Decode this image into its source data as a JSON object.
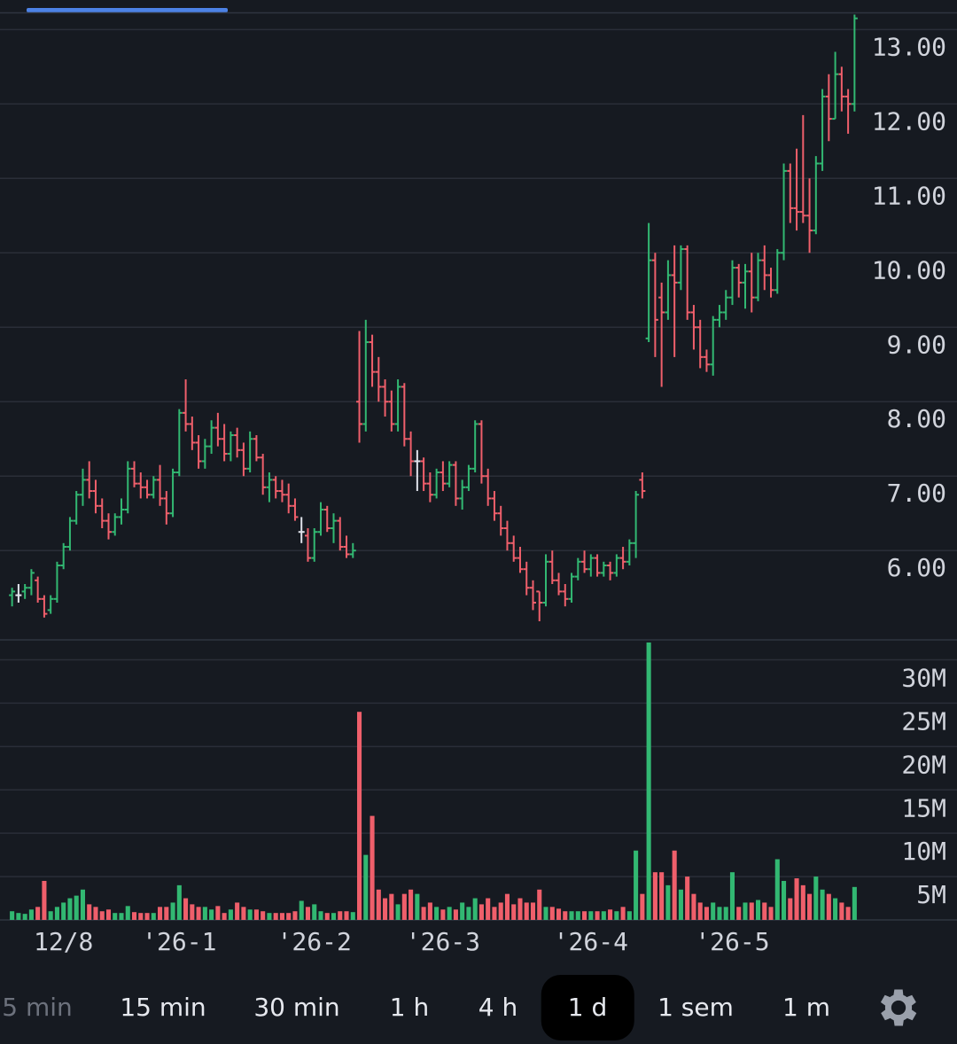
{
  "chart_data": {
    "type": "ohlc",
    "up_color": "#32b872",
    "down_color": "#ef5f6b",
    "doji_color": "#e0e3eb",
    "grid": true,
    "categories": [
      null,
      null,
      null,
      null,
      null,
      null,
      null,
      null,
      "12/8",
      null,
      null,
      null,
      null,
      null,
      null,
      null,
      null,
      null,
      null,
      null,
      null,
      null,
      null,
      null,
      null,
      null,
      "'26-1",
      null,
      null,
      null,
      null,
      null,
      null,
      null,
      null,
      null,
      null,
      null,
      null,
      null,
      null,
      null,
      null,
      null,
      null,
      null,
      null,
      "'26-2",
      null,
      null,
      null,
      null,
      null,
      null,
      null,
      null,
      null,
      null,
      null,
      null,
      null,
      null,
      null,
      null,
      null,
      null,
      null,
      "'26-3",
      null,
      null,
      null,
      null,
      null,
      null,
      null,
      null,
      null,
      null,
      null,
      null,
      null,
      null,
      null,
      null,
      null,
      null,
      null,
      null,
      null,
      null,
      "'26-4",
      null,
      null,
      null,
      null,
      null,
      null,
      null,
      null,
      null,
      null,
      null,
      null,
      null,
      null,
      null,
      null,
      null,
      null,
      null,
      null,
      null,
      "'26-5",
      null,
      null,
      null,
      null,
      null,
      null,
      null,
      null,
      null,
      null,
      null,
      null,
      null,
      null,
      null,
      null,
      null,
      null,
      null
    ],
    "ohlc": [
      [
        5.4,
        5.5,
        5.25,
        5.45
      ],
      [
        5.4,
        5.55,
        5.3,
        5.4
      ],
      [
        5.45,
        5.55,
        5.35,
        5.5
      ],
      [
        5.5,
        5.75,
        5.4,
        5.7
      ],
      [
        5.6,
        5.65,
        5.3,
        5.35
      ],
      [
        5.35,
        5.4,
        5.1,
        5.15
      ],
      [
        5.2,
        5.4,
        5.15,
        5.35
      ],
      [
        5.35,
        5.85,
        5.3,
        5.8
      ],
      [
        5.8,
        6.1,
        5.75,
        6.05
      ],
      [
        6.05,
        6.45,
        6.0,
        6.4
      ],
      [
        6.4,
        6.8,
        6.35,
        6.75
      ],
      [
        6.75,
        7.1,
        6.6,
        6.95
      ],
      [
        6.95,
        7.2,
        6.7,
        6.8
      ],
      [
        6.8,
        6.95,
        6.5,
        6.6
      ],
      [
        6.6,
        6.7,
        6.3,
        6.4
      ],
      [
        6.4,
        6.5,
        6.15,
        6.25
      ],
      [
        6.25,
        6.5,
        6.2,
        6.45
      ],
      [
        6.45,
        6.7,
        6.35,
        6.55
      ],
      [
        6.55,
        7.2,
        6.5,
        7.1
      ],
      [
        7.1,
        7.2,
        6.85,
        6.9
      ],
      [
        6.9,
        7.05,
        6.7,
        6.85
      ],
      [
        6.85,
        6.95,
        6.7,
        6.75
      ],
      [
        6.75,
        7.0,
        6.7,
        6.95
      ],
      [
        6.95,
        7.15,
        6.6,
        6.7
      ],
      [
        6.7,
        6.8,
        6.35,
        6.5
      ],
      [
        6.5,
        7.1,
        6.45,
        7.05
      ],
      [
        7.05,
        7.9,
        7.0,
        7.85
      ],
      [
        7.85,
        8.3,
        7.6,
        7.7
      ],
      [
        7.7,
        7.8,
        7.35,
        7.45
      ],
      [
        7.45,
        7.55,
        7.1,
        7.2
      ],
      [
        7.2,
        7.5,
        7.1,
        7.4
      ],
      [
        7.4,
        7.75,
        7.3,
        7.65
      ],
      [
        7.65,
        7.85,
        7.4,
        7.5
      ],
      [
        7.5,
        7.7,
        7.2,
        7.3
      ],
      [
        7.3,
        7.6,
        7.2,
        7.55
      ],
      [
        7.55,
        7.65,
        7.25,
        7.35
      ],
      [
        7.35,
        7.45,
        7.0,
        7.1
      ],
      [
        7.1,
        7.6,
        7.05,
        7.5
      ],
      [
        7.5,
        7.55,
        7.2,
        7.25
      ],
      [
        7.25,
        7.3,
        6.75,
        6.85
      ],
      [
        6.85,
        7.05,
        6.65,
        6.95
      ],
      [
        6.95,
        7.0,
        6.7,
        6.8
      ],
      [
        6.8,
        6.95,
        6.65,
        6.75
      ],
      [
        6.75,
        6.9,
        6.5,
        6.6
      ],
      [
        6.6,
        6.7,
        6.4,
        6.45
      ],
      [
        6.25,
        6.45,
        6.1,
        6.25
      ],
      [
        6.2,
        6.3,
        5.85,
        5.9
      ],
      [
        5.9,
        6.3,
        5.85,
        6.25
      ],
      [
        6.25,
        6.65,
        6.2,
        6.55
      ],
      [
        6.55,
        6.6,
        6.25,
        6.3
      ],
      [
        6.3,
        6.5,
        6.1,
        6.4
      ],
      [
        6.4,
        6.45,
        6.0,
        6.05
      ],
      [
        6.05,
        6.2,
        5.9,
        5.95
      ],
      [
        5.95,
        6.1,
        5.9,
        6.0
      ],
      [
        8.0,
        8.95,
        7.45,
        7.7
      ],
      [
        7.7,
        9.1,
        7.6,
        8.8
      ],
      [
        8.8,
        8.9,
        8.2,
        8.4
      ],
      [
        8.4,
        8.6,
        8.0,
        8.2
      ],
      [
        8.2,
        8.3,
        7.8,
        8.0
      ],
      [
        8.0,
        8.15,
        7.6,
        7.7
      ],
      [
        7.7,
        8.3,
        7.6,
        8.2
      ],
      [
        8.2,
        8.25,
        7.4,
        7.5
      ],
      [
        7.5,
        7.6,
        7.0,
        7.2
      ],
      [
        7.2,
        7.35,
        6.8,
        7.2
      ],
      [
        7.2,
        7.25,
        6.8,
        6.9
      ],
      [
        6.9,
        7.05,
        6.65,
        6.75
      ],
      [
        6.75,
        7.1,
        6.7,
        7.05
      ],
      [
        7.05,
        7.2,
        6.8,
        6.9
      ],
      [
        6.9,
        7.2,
        6.85,
        7.15
      ],
      [
        7.15,
        7.2,
        6.6,
        6.7
      ],
      [
        6.7,
        6.95,
        6.55,
        6.85
      ],
      [
        6.85,
        7.15,
        6.8,
        7.1
      ],
      [
        7.1,
        7.75,
        7.05,
        7.7
      ],
      [
        7.7,
        7.75,
        6.9,
        7.0
      ],
      [
        7.0,
        7.1,
        6.6,
        6.7
      ],
      [
        6.7,
        6.8,
        6.4,
        6.5
      ],
      [
        6.5,
        6.6,
        6.2,
        6.3
      ],
      [
        6.3,
        6.4,
        6.0,
        6.1
      ],
      [
        6.1,
        6.2,
        5.85,
        5.9
      ],
      [
        5.9,
        6.05,
        5.7,
        5.75
      ],
      [
        5.75,
        5.85,
        5.4,
        5.5
      ],
      [
        5.5,
        5.6,
        5.2,
        5.3
      ],
      [
        5.45,
        5.45,
        5.05,
        5.3
      ],
      [
        5.3,
        5.95,
        5.25,
        5.85
      ],
      [
        5.85,
        6.0,
        5.55,
        5.6
      ],
      [
        5.6,
        5.7,
        5.4,
        5.45
      ],
      [
        5.45,
        5.55,
        5.25,
        5.35
      ],
      [
        5.35,
        5.7,
        5.3,
        5.65
      ],
      [
        5.65,
        5.9,
        5.6,
        5.85
      ],
      [
        5.85,
        6.0,
        5.7,
        5.75
      ],
      [
        5.75,
        5.95,
        5.65,
        5.9
      ],
      [
        5.9,
        5.95,
        5.65,
        5.7
      ],
      [
        5.7,
        5.85,
        5.65,
        5.8
      ],
      [
        5.8,
        5.85,
        5.6,
        5.7
      ],
      [
        5.7,
        5.95,
        5.65,
        5.9
      ],
      [
        5.9,
        6.05,
        5.75,
        5.85
      ],
      [
        5.85,
        6.15,
        5.8,
        6.1
      ],
      [
        6.1,
        6.8,
        5.9,
        6.75
      ],
      [
        6.95,
        7.05,
        6.7,
        6.8
      ],
      [
        8.85,
        10.4,
        8.8,
        9.9
      ],
      [
        9.9,
        10.0,
        8.6,
        9.1
      ],
      [
        9.4,
        9.6,
        8.2,
        9.2
      ],
      [
        9.2,
        9.9,
        9.1,
        9.7
      ],
      [
        9.7,
        10.1,
        8.6,
        9.6
      ],
      [
        9.6,
        10.1,
        9.5,
        10.05
      ],
      [
        10.05,
        10.1,
        9.1,
        9.2
      ],
      [
        9.2,
        9.3,
        8.7,
        9.0
      ],
      [
        9.0,
        9.1,
        8.45,
        8.6
      ],
      [
        8.6,
        8.7,
        8.4,
        8.5
      ],
      [
        8.5,
        9.15,
        8.35,
        9.1
      ],
      [
        9.1,
        9.3,
        9.0,
        9.2
      ],
      [
        9.2,
        9.5,
        9.1,
        9.4
      ],
      [
        9.4,
        9.9,
        9.3,
        9.8
      ],
      [
        9.8,
        9.85,
        9.4,
        9.6
      ],
      [
        9.6,
        9.85,
        9.25,
        9.75
      ],
      [
        9.75,
        10.0,
        9.2,
        9.4
      ],
      [
        9.4,
        10.0,
        9.35,
        9.9
      ],
      [
        9.9,
        10.1,
        9.5,
        9.7
      ],
      [
        9.7,
        9.8,
        9.4,
        9.5
      ],
      [
        9.5,
        10.05,
        9.45,
        10.0
      ],
      [
        10.0,
        11.2,
        9.9,
        11.1
      ],
      [
        11.1,
        11.2,
        10.4,
        10.6
      ],
      [
        10.6,
        11.4,
        10.3,
        10.55
      ],
      [
        10.55,
        11.85,
        10.4,
        10.5
      ],
      [
        10.5,
        11.0,
        10.0,
        10.3
      ],
      [
        10.3,
        11.3,
        10.25,
        11.2
      ],
      [
        11.2,
        12.2,
        11.1,
        12.1
      ],
      [
        12.1,
        12.4,
        11.5,
        11.8
      ],
      [
        11.8,
        12.7,
        11.8,
        12.4
      ],
      [
        12.4,
        12.5,
        11.9,
        12.1
      ],
      [
        12.1,
        12.2,
        11.6,
        12.0
      ],
      [
        12.0,
        13.2,
        11.9,
        13.15
      ]
    ],
    "volume": [
      1.0,
      0.8,
      0.7,
      1.2,
      1.5,
      4.5,
      1.0,
      1.5,
      2.0,
      2.5,
      2.8,
      3.5,
      1.8,
      1.5,
      1.0,
      1.2,
      0.8,
      0.8,
      1.6,
      0.9,
      0.8,
      0.8,
      0.8,
      1.5,
      1.5,
      2.0,
      4.0,
      2.5,
      1.8,
      1.5,
      1.5,
      1.2,
      1.6,
      0.8,
      1.2,
      2.0,
      1.5,
      1.2,
      1.2,
      1.0,
      0.8,
      0.8,
      0.8,
      0.8,
      1.0,
      2.2,
      1.5,
      1.8,
      1.0,
      0.8,
      0.8,
      1.0,
      1.0,
      0.9,
      24.0,
      7.5,
      12.0,
      3.5,
      2.5,
      3.0,
      1.8,
      3.0,
      3.5,
      3.0,
      1.5,
      2.0,
      1.5,
      1.2,
      1.5,
      1.2,
      2.0,
      1.5,
      2.5,
      1.8,
      2.5,
      1.5,
      2.0,
      3.0,
      1.8,
      2.5,
      2.0,
      2.0,
      3.5,
      1.5,
      1.5,
      1.3,
      1.0,
      1.0,
      1.0,
      1.0,
      1.0,
      1.0,
      1.0,
      1.2,
      1.0,
      1.5,
      1.0,
      8.0,
      3.0,
      32.0,
      5.5,
      5.5,
      4.0,
      8.0,
      3.5,
      5.0,
      3.0,
      2.0,
      1.5,
      2.0,
      1.5,
      1.5,
      5.5,
      1.5,
      2.0,
      2.0,
      2.3,
      2.0,
      1.5,
      7.0,
      4.5,
      2.5,
      4.8,
      4.0,
      3.0,
      5.0,
      3.5,
      3.0,
      2.5,
      2.0,
      1.5,
      3.8
    ],
    "ylim": [
      4.8,
      13.23
    ],
    "yticks": [
      {
        "value": 6,
        "label": "6.00"
      },
      {
        "value": 7,
        "label": "7.00"
      },
      {
        "value": 8,
        "label": "8.00"
      },
      {
        "value": 9,
        "label": "9.00"
      },
      {
        "value": 10,
        "label": "10.00"
      },
      {
        "value": 11,
        "label": "11.00"
      },
      {
        "value": 12,
        "label": "12.00"
      },
      {
        "value": 13,
        "label": "13.00"
      }
    ],
    "y2lim": [
      0,
      32.3
    ],
    "y2ticks": [
      {
        "value": 5,
        "label": "5M"
      },
      {
        "value": 10,
        "label": "10M"
      },
      {
        "value": 15,
        "label": "15M"
      },
      {
        "value": 20,
        "label": "20M"
      },
      {
        "value": 25,
        "label": "25M"
      },
      {
        "value": 30,
        "label": "30M"
      }
    ]
  },
  "timeframes": {
    "items": [
      "5 min",
      "15 min",
      "30 min",
      "1 h",
      "4 h",
      "1 d",
      "1 sem",
      "1 m"
    ],
    "selected": 5
  }
}
